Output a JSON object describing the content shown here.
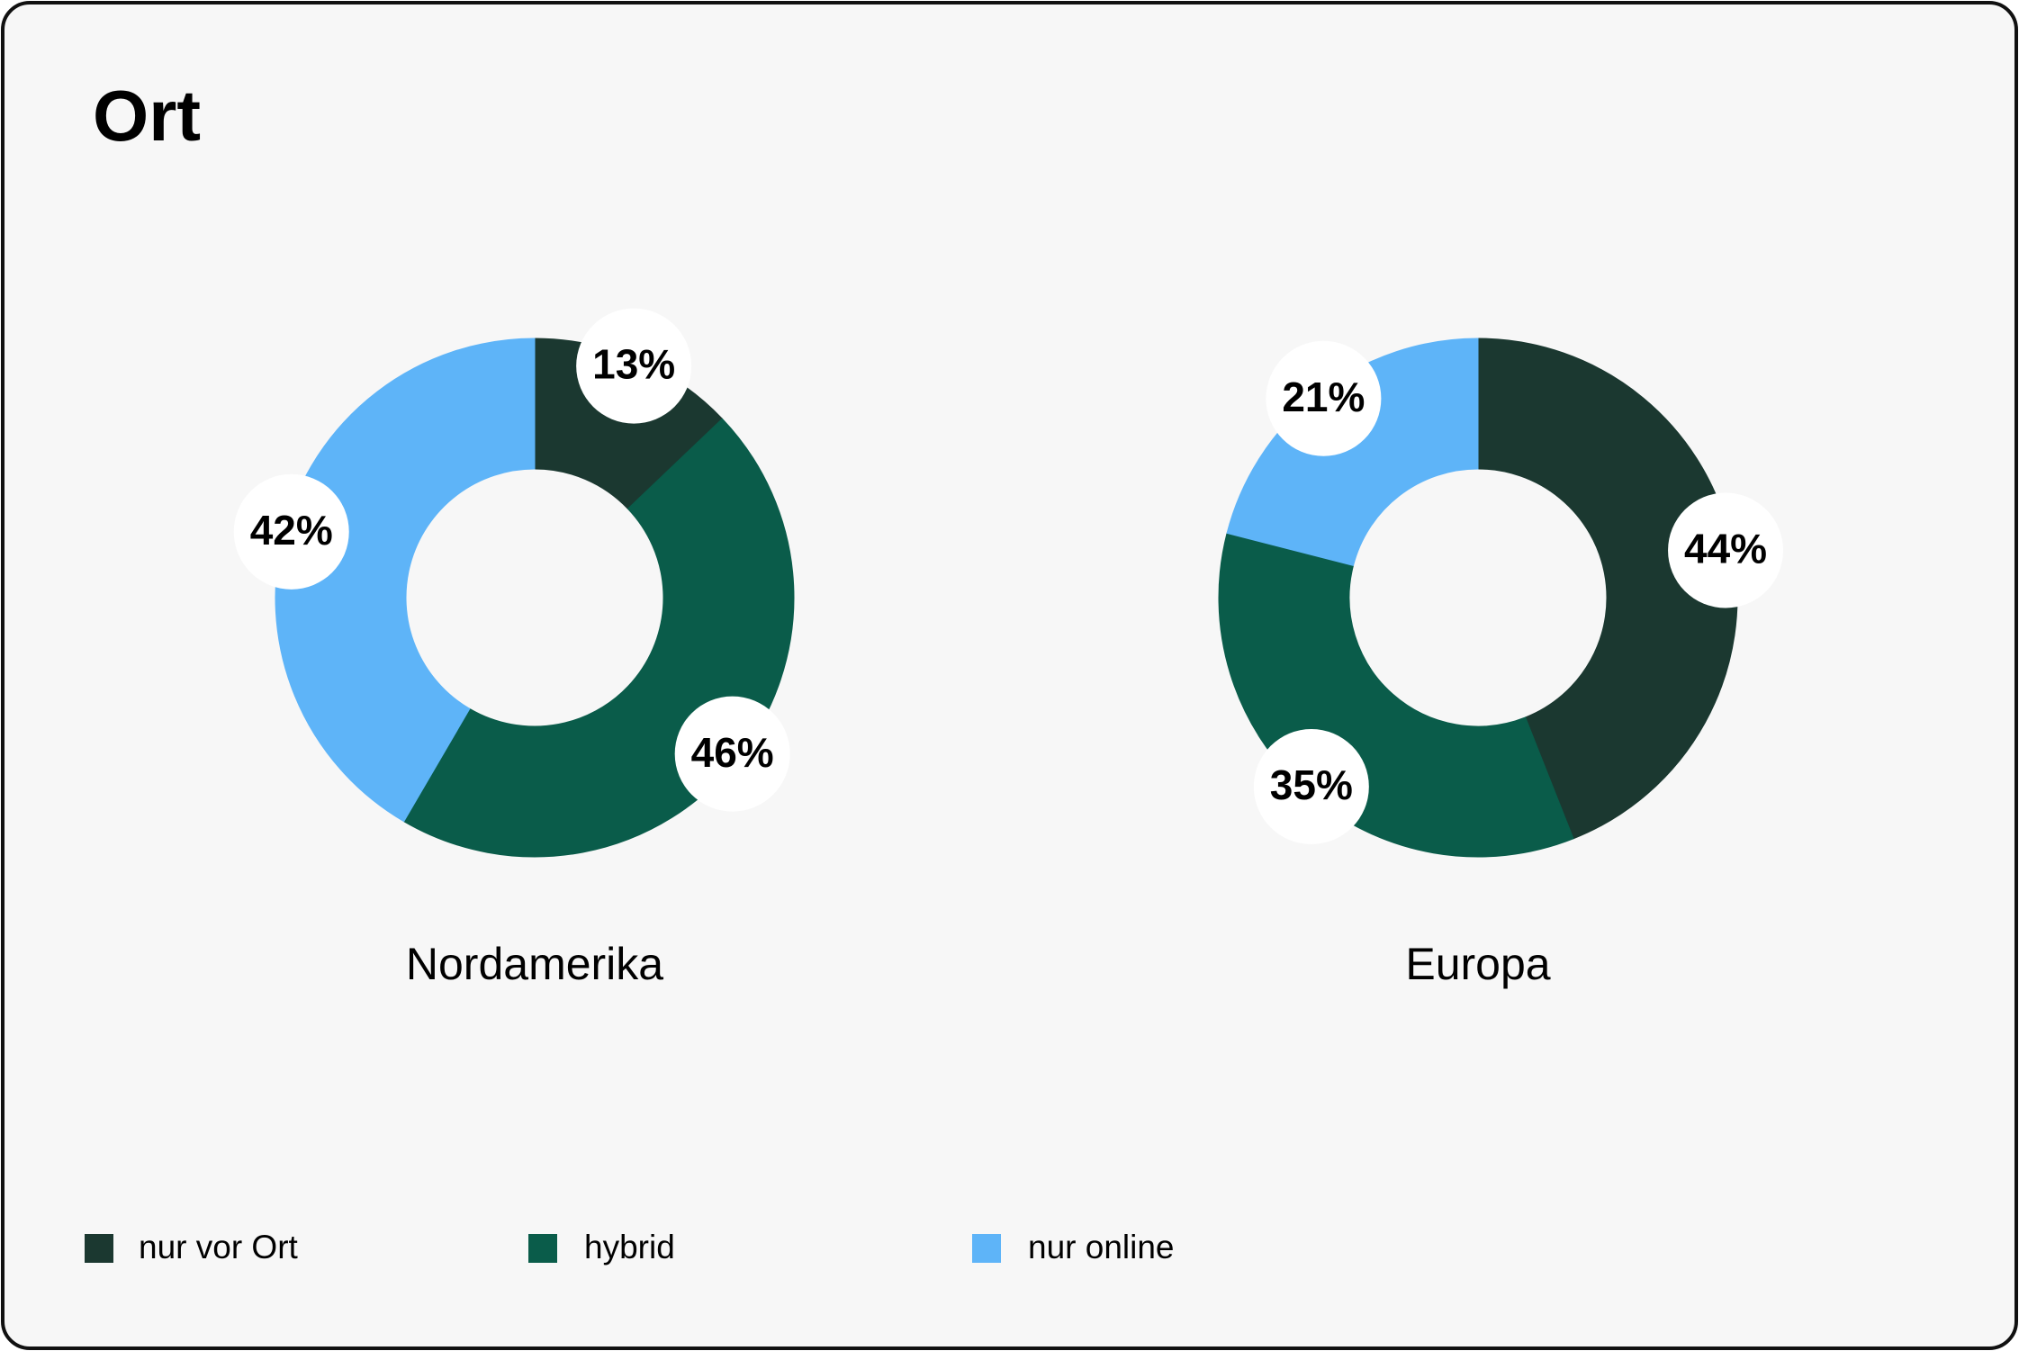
{
  "title": "Ort",
  "chart_data": [
    {
      "type": "pie",
      "title": "Nordamerika",
      "categories": [
        "nur vor Ort",
        "hybrid",
        "nur online"
      ],
      "values": [
        13,
        46,
        42
      ],
      "value_labels": [
        "13%",
        "46%",
        "42%"
      ],
      "colors": [
        "#1b3830",
        "#0a5c4a",
        "#5eb4f8"
      ]
    },
    {
      "type": "pie",
      "title": "Europa",
      "categories": [
        "nur vor Ort",
        "hybrid",
        "nur online"
      ],
      "values": [
        44,
        35,
        21
      ],
      "value_labels": [
        "44%",
        "35%",
        "21%"
      ],
      "colors": [
        "#1b3830",
        "#0a5c4a",
        "#5eb4f8"
      ]
    }
  ]
}
